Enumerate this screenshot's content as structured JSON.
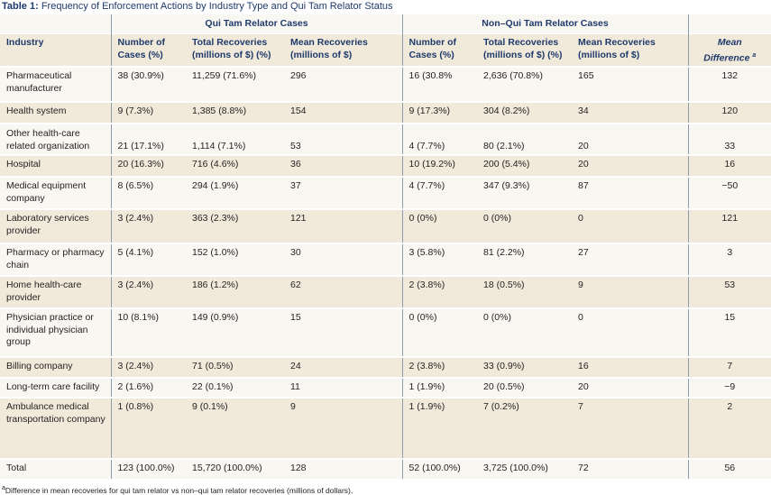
{
  "title": {
    "label": "Table 1:",
    "text": "Frequency of Enforcement Actions by Industry Type and Qui Tam Relator Status"
  },
  "groups": {
    "qui_tam": "Qui Tam Relator Cases",
    "non_qui_tam": "Non–Qui Tam Relator Cases"
  },
  "headers": {
    "industry": "Industry",
    "qt_cases_1": "Number of",
    "qt_cases_2": "Cases (%)",
    "qt_total_1": "Total Recoveries",
    "qt_total_2": "(millions of $) (%)",
    "qt_mean_1": "Mean Recoveries",
    "qt_mean_2": "(millions of $)",
    "nqt_cases_1": "Number of",
    "nqt_cases_2": "Cases (%)",
    "nqt_total_1": "Total Recoveries",
    "nqt_total_2": "(millions of $) (%)",
    "nqt_mean_1": "Mean Recoveries",
    "nqt_mean_2": "(millions of $)",
    "diff_1": "Mean",
    "diff_2": "Difference",
    "diff_sup": "a"
  },
  "rows": [
    [
      "Pharmaceutical manufacturer",
      "38 (30.9%)",
      "11,259 (71.6%)",
      "296",
      "16 (30.8%",
      "2,636 (70.8%)",
      "165",
      "132"
    ],
    [
      "Health system",
      "9 (7.3%)",
      "1,385 (8.8%)",
      "154",
      "9 (17.3%)",
      "304 (8.2%)",
      "34",
      "120"
    ],
    [
      "Other health-care related organization",
      "21 (17.1%)",
      "1,114 (7.1%)",
      "53",
      "4 (7.7%)",
      "80 (2.1%)",
      "20",
      "33"
    ],
    [
      "Hospital",
      "20 (16.3%)",
      "716 (4.6%)",
      "36",
      "10 (19.2%)",
      "200 (5.4%)",
      "20",
      "16"
    ],
    [
      "Medical equipment company",
      "8 (6.5%)",
      "294 (1.9%)",
      "37",
      "4 (7.7%)",
      "347 (9.3%)",
      "87",
      "−50"
    ],
    [
      "Laboratory services provider",
      "3 (2.4%)",
      "363 (2.3%)",
      "121",
      "0 (0%)",
      "0 (0%)",
      "0",
      "121"
    ],
    [
      "Pharmacy or pharmacy chain",
      "5 (4.1%)",
      "152 (1.0%)",
      "30",
      "3 (5.8%)",
      "81 (2.2%)",
      "27",
      "3"
    ],
    [
      "Home health-care provider",
      "3 (2.4%)",
      "186 (1.2%)",
      "62",
      "2 (3.8%)",
      "18 (0.5%)",
      "9",
      "53"
    ],
    [
      "Physician practice or individual physician group",
      "10 (8.1%)",
      "149 (0.9%)",
      "15",
      "0 (0%)",
      "0 (0%)",
      "0",
      "15"
    ],
    [
      "Billing company",
      "3 (2.4%)",
      "71 (0.5%)",
      "24",
      "2 (3.8%)",
      "33 (0.9%)",
      "16",
      "7"
    ],
    [
      "Long-term care facility",
      "2 (1.6%)",
      "22 (0.1%)",
      "11",
      "1 (1.9%)",
      "20 (0.5%)",
      "20",
      "−9"
    ],
    [
      "Ambulance medical transportation company",
      "1 (0.8%)",
      "9 (0.1%)",
      "9",
      "1 (1.9%)",
      "7 (0.2%)",
      "7",
      "2"
    ],
    [
      "Total",
      "123 (100.0%)",
      "15,720 (100.0%)",
      "128",
      "52 (100.0%)",
      "3,725 (100.0%)",
      "72",
      "56"
    ]
  ],
  "footnote": {
    "sup": "a",
    "text": "Difference in mean recoveries for qui tam relator vs non–qui tam relator recoveries (millions of dollars)."
  },
  "colors": {
    "header_text": "#1f3a6b",
    "band_dark": "#f1eadb",
    "band_light": "#f9f7f2",
    "rule": "#8d9bb0"
  }
}
